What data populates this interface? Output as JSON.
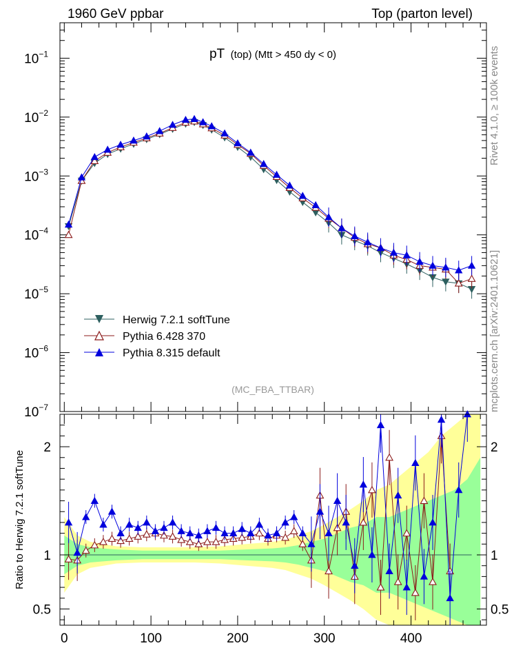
{
  "header": {
    "left": "1960 GeV ppbar",
    "right": "Top (parton level)"
  },
  "side_labels": {
    "rivet": "Rivet 4.1.0, ≥ 100k events",
    "mcplots": "mcplots.cern.ch [arXiv:2401.10621]"
  },
  "chart_data": {
    "type": "line",
    "title_main": "pT",
    "title_sub": "(top) (Mtt > 450 dy < 0)",
    "watermark": "(MC_FBA_TTBAR)",
    "xlabel": "",
    "ylabel": "",
    "xlim": [
      -5,
      487
    ],
    "ylim": [
      1e-07,
      0.4
    ],
    "yscale": "log",
    "x_ticks": [
      0,
      100,
      200,
      300,
      400
    ],
    "y_ticks": [
      {
        "value": 1e-07,
        "mantissa": "10",
        "exp": "−7"
      },
      {
        "value": 1e-06,
        "mantissa": "10",
        "exp": "−6"
      },
      {
        "value": 1e-05,
        "mantissa": "10",
        "exp": "−5"
      },
      {
        "value": 0.0001,
        "mantissa": "10",
        "exp": "−4"
      },
      {
        "value": 0.001,
        "mantissa": "10",
        "exp": "−3"
      },
      {
        "value": 0.01,
        "mantissa": "10",
        "exp": "−2"
      },
      {
        "value": 0.1,
        "mantissa": "10",
        "exp": "−1"
      }
    ],
    "series": [
      {
        "name": "Herwig 7.2.1 softTune",
        "color": "#2d5f5f",
        "marker": "triangle-down-filled",
        "x": [
          5,
          20,
          35,
          50,
          65,
          80,
          95,
          110,
          125,
          140,
          150,
          160,
          170,
          185,
          200,
          215,
          230,
          245,
          260,
          275,
          290,
          305,
          320,
          335,
          350,
          365,
          380,
          395,
          410,
          425,
          440,
          455,
          470
        ],
        "y": [
          0.00014,
          0.00083,
          0.00165,
          0.00235,
          0.0029,
          0.0035,
          0.0042,
          0.0051,
          0.0063,
          0.0077,
          0.0082,
          0.0073,
          0.0061,
          0.0045,
          0.0031,
          0.0021,
          0.0013,
          0.00085,
          0.00054,
          0.00036,
          0.00024,
          0.00016,
          0.0001,
          8e-05,
          6.5e-05,
          5e-05,
          4e-05,
          3.2e-05,
          2.5e-05,
          1.9e-05,
          1.6e-05,
          1.5e-05,
          1.2e-05
        ]
      },
      {
        "name": "Pythia 6.428 370",
        "color": "#8b1a1a",
        "marker": "triangle-up-open",
        "x": [
          5,
          20,
          35,
          50,
          65,
          80,
          95,
          110,
          125,
          140,
          150,
          160,
          170,
          185,
          200,
          215,
          230,
          245,
          260,
          275,
          290,
          305,
          320,
          335,
          350,
          365,
          380,
          395,
          410,
          425,
          440,
          455,
          470
        ],
        "y": [
          0.0001,
          0.00083,
          0.0018,
          0.0025,
          0.0031,
          0.0037,
          0.0044,
          0.0053,
          0.0066,
          0.0081,
          0.0085,
          0.0076,
          0.0065,
          0.0049,
          0.0034,
          0.0024,
          0.0015,
          0.00097,
          0.00063,
          0.00042,
          0.00029,
          0.00019,
          0.00013,
          9e-05,
          7e-05,
          6e-05,
          4.5e-05,
          3.8e-05,
          3e-05,
          2.8e-05,
          2.6e-05,
          1.5e-05,
          1.8e-05
        ]
      },
      {
        "name": "Pythia 8.315 default",
        "color": "#0000dd",
        "marker": "triangle-up-filled",
        "x": [
          5,
          20,
          35,
          50,
          65,
          80,
          95,
          110,
          125,
          140,
          150,
          160,
          170,
          185,
          200,
          215,
          230,
          245,
          260,
          275,
          290,
          305,
          320,
          335,
          350,
          365,
          380,
          395,
          410,
          425,
          440,
          455,
          470
        ],
        "y": [
          0.00015,
          0.00095,
          0.0021,
          0.0028,
          0.0034,
          0.004,
          0.0047,
          0.0058,
          0.0074,
          0.009,
          0.0093,
          0.0082,
          0.007,
          0.0053,
          0.0036,
          0.0025,
          0.0016,
          0.00105,
          0.00069,
          0.00046,
          0.00032,
          0.0002,
          0.00013,
          9.5e-05,
          7.5e-05,
          6e-05,
          5e-05,
          4.5e-05,
          3.5e-05,
          3e-05,
          2.8e-05,
          2.5e-05,
          3e-05
        ]
      }
    ],
    "ratio": {
      "ylabel": "Ratio to Herwig 7.2.1 softTune",
      "ylim": [
        0.35,
        2.3
      ],
      "y_ticks": [
        0.5,
        1,
        2
      ],
      "band_x": [
        0,
        15,
        30,
        45,
        60,
        90,
        120,
        150,
        180,
        210,
        240,
        255,
        270,
        285,
        300,
        315,
        330,
        345,
        360,
        375,
        390,
        405,
        420,
        435,
        450,
        465,
        480
      ],
      "band_inner": [
        0.18,
        0.1,
        0.07,
        0.06,
        0.05,
        0.04,
        0.04,
        0.04,
        0.04,
        0.05,
        0.06,
        0.07,
        0.09,
        0.12,
        0.15,
        0.2,
        0.25,
        0.28,
        0.35,
        0.35,
        0.4,
        0.45,
        0.5,
        0.55,
        0.6,
        0.7,
        0.9
      ],
      "band_outer": [
        0.35,
        0.18,
        0.12,
        0.1,
        0.08,
        0.07,
        0.07,
        0.07,
        0.08,
        0.1,
        0.12,
        0.14,
        0.18,
        0.22,
        0.28,
        0.35,
        0.42,
        0.5,
        0.6,
        0.65,
        0.75,
        0.85,
        0.95,
        1.1,
        1.2,
        1.4,
        1.6
      ],
      "series": [
        {
          "name": "Herwig 7.2.1 softTune",
          "x": [
            5,
            40,
            80,
            120,
            160,
            200,
            240,
            280,
            320,
            360,
            400,
            440,
            470
          ],
          "y": [
            1.0,
            1.0,
            1.0,
            1.0,
            1.0,
            1.0,
            1.0,
            1.0,
            1.0,
            1.0,
            1.0,
            1.0,
            1.0
          ]
        },
        {
          "name": "Pythia 6.428 370",
          "x": [
            5,
            15,
            25,
            35,
            45,
            55,
            65,
            75,
            85,
            95,
            105,
            115,
            125,
            135,
            145,
            155,
            165,
            175,
            185,
            195,
            205,
            215,
            225,
            235,
            245,
            255,
            265,
            275,
            285,
            295,
            305,
            315,
            325,
            335,
            345,
            355,
            365,
            375,
            385,
            395,
            405,
            415,
            425,
            435,
            445
          ],
          "y": [
            0.96,
            0.95,
            1.04,
            1.09,
            1.12,
            1.15,
            1.13,
            1.15,
            1.17,
            1.19,
            1.2,
            1.18,
            1.17,
            1.14,
            1.12,
            1.1,
            1.12,
            1.12,
            1.14,
            1.15,
            1.16,
            1.17,
            1.2,
            1.15,
            1.18,
            1.16,
            1.22,
            1.1,
            0.95,
            1.55,
            0.85,
            1.25,
            1.4,
            0.8,
            1.3,
            1.6,
            0.7,
            1.9,
            0.75,
            1.2,
            0.65,
            1.5,
            0.75,
            2.1,
            0.85
          ]
        },
        {
          "name": "Pythia 8.315 default",
          "x": [
            5,
            15,
            25,
            35,
            45,
            55,
            65,
            75,
            85,
            95,
            105,
            115,
            125,
            135,
            145,
            155,
            165,
            175,
            185,
            195,
            205,
            215,
            225,
            235,
            245,
            255,
            265,
            275,
            285,
            295,
            305,
            315,
            325,
            335,
            345,
            355,
            365,
            375,
            385,
            395,
            405,
            415,
            425,
            435,
            445,
            455,
            465
          ],
          "y": [
            1.3,
            1.02,
            1.35,
            1.5,
            1.28,
            1.4,
            1.2,
            1.28,
            1.25,
            1.3,
            1.22,
            1.25,
            1.3,
            1.22,
            1.2,
            1.18,
            1.22,
            1.25,
            1.2,
            1.2,
            1.24,
            1.2,
            1.28,
            1.18,
            1.2,
            1.3,
            1.35,
            1.2,
            1.1,
            1.4,
            1.2,
            1.5,
            1.3,
            0.9,
            1.65,
            1.0,
            2.2,
            0.85,
            1.55,
            0.7,
            1.85,
            0.8,
            1.3,
            2.25,
            0.6,
            1.6,
            2.4
          ]
        }
      ]
    }
  }
}
